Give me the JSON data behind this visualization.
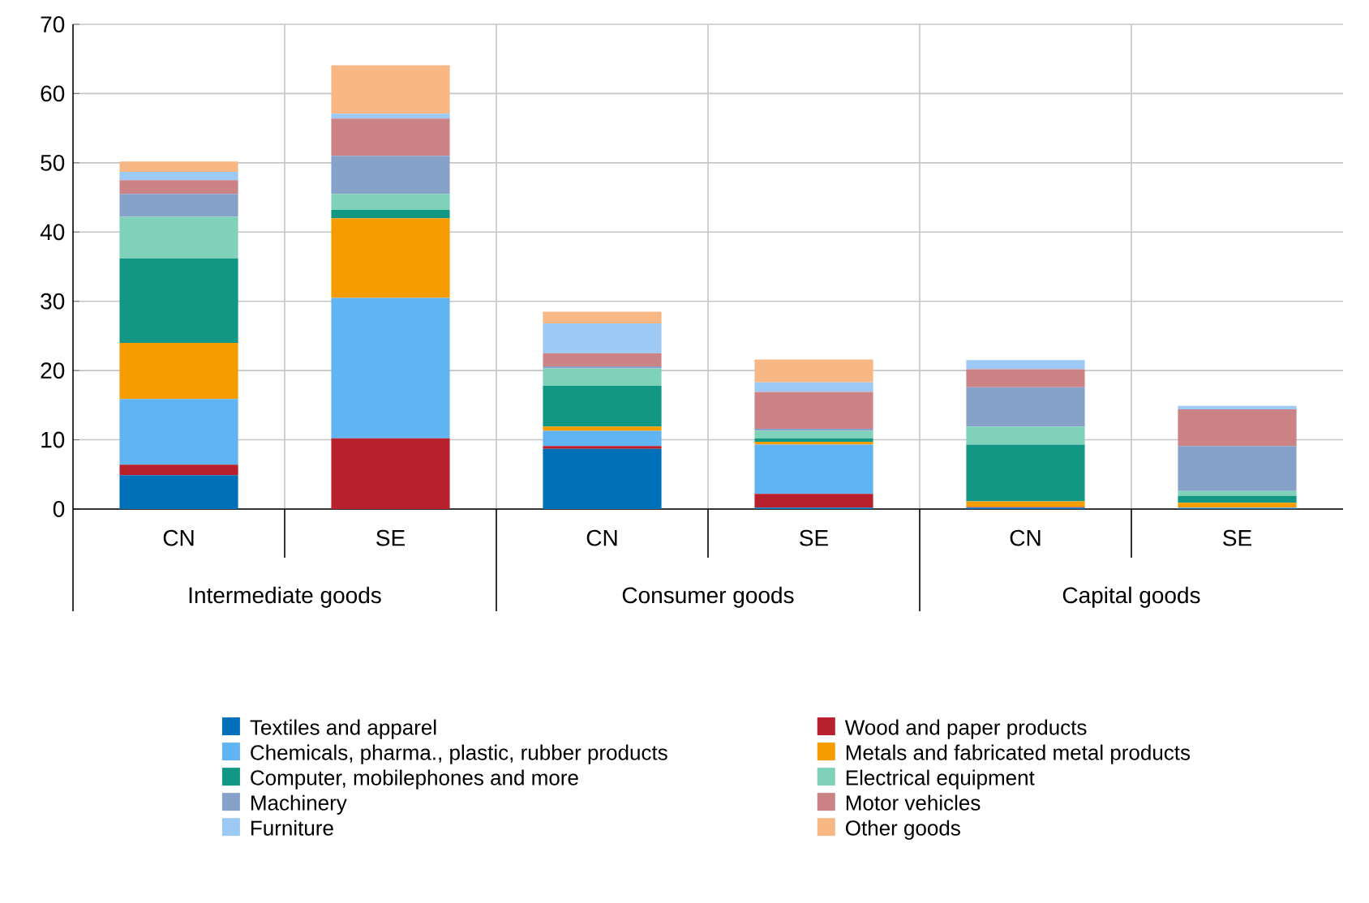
{
  "chart_data": {
    "type": "bar",
    "stacked": true,
    "categories": [
      "CN",
      "SE",
      "CN",
      "SE",
      "CN",
      "SE"
    ],
    "annotations": [
      "Intermediate goods",
      "Consumer goods",
      "Capital goods"
    ],
    "series": [
      {
        "name": "Textiles and apparel",
        "color": "#0070b8",
        "values": [
          4.9,
          0,
          8.7,
          0.2,
          0.2,
          0.1
        ]
      },
      {
        "name": "Wood and paper products",
        "color": "#b9202e",
        "values": [
          1.5,
          10.2,
          0.4,
          2.0,
          0.1,
          0
        ]
      },
      {
        "name": "Chemicals, pharma., plastic, rubber products",
        "color": "#60b4f2",
        "values": [
          9.5,
          20.3,
          2.2,
          7.1,
          null,
          0.1
        ]
      },
      {
        "name": "Metals and fabricated metal products",
        "color": "#f59c00",
        "values": [
          8.1,
          11.5,
          0.6,
          0.4,
          0.8,
          0.7
        ]
      },
      {
        "name": "Computer, mobilephones and more",
        "color": "#119783",
        "values": [
          12.2,
          1.2,
          5.9,
          0.5,
          8.2,
          1.0
        ]
      },
      {
        "name": "Electrical equipment",
        "color": "#7fd1b9",
        "values": [
          6.0,
          2.3,
          2.5,
          1.1,
          2.6,
          0.7
        ]
      },
      {
        "name": "Machinery",
        "color": "#86a2c9",
        "values": [
          3.3,
          5.5,
          0.3,
          0.3,
          5.7,
          6.5
        ]
      },
      {
        "name": "Motor vehicles",
        "color": "#cc8386",
        "values": [
          2.0,
          5.4,
          1.9,
          5.3,
          2.6,
          5.3
        ]
      },
      {
        "name": "Furniture",
        "color": "#9dc9f5",
        "values": [
          1.2,
          0.7,
          4.3,
          1.4,
          1.3,
          0.5
        ]
      },
      {
        "name": "Other goods",
        "color": "#f7b885",
        "values": [
          1.5,
          7.0,
          1.7,
          3.3,
          0,
          0
        ]
      }
    ],
    "ylim": [
      0,
      70
    ],
    "yticks": [
      0,
      10,
      20,
      30,
      40,
      50,
      60,
      70
    ],
    "grid": true,
    "legend": "bottom"
  }
}
